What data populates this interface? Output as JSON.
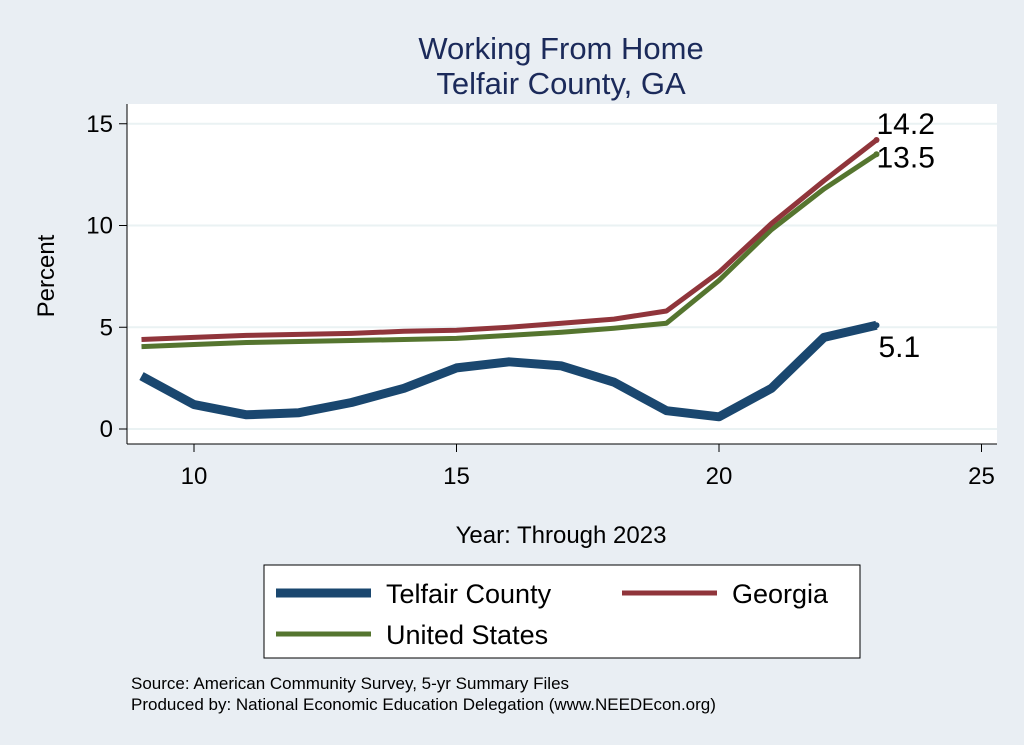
{
  "chart_data": {
    "type": "line",
    "title": "Working From Home",
    "subtitle": "Telfair County, GA",
    "xlabel": "Year: Through 2023",
    "ylabel": "Percent",
    "xlim": [
      9,
      25
    ],
    "ylim": [
      0,
      15
    ],
    "x_ticks": [
      "10",
      "15",
      "20",
      "25"
    ],
    "y_ticks": [
      "0",
      "5",
      "10",
      "15"
    ],
    "grid": true,
    "legend_position": "bottom",
    "x": [
      9,
      10,
      11,
      12,
      13,
      14,
      15,
      16,
      17,
      18,
      19,
      20,
      21,
      22,
      23
    ],
    "series": [
      {
        "name": "Telfair County",
        "color": "#1a476f",
        "values": [
          2.6,
          1.2,
          0.7,
          0.8,
          1.3,
          2.0,
          3.0,
          3.3,
          3.1,
          2.3,
          0.9,
          0.6,
          2.0,
          4.5,
          5.1
        ],
        "end_label": "5.1"
      },
      {
        "name": "Georgia",
        "color": "#90353b",
        "values": [
          4.4,
          4.5,
          4.6,
          4.65,
          4.7,
          4.8,
          4.85,
          5.0,
          5.2,
          5.4,
          5.8,
          7.7,
          10.1,
          12.2,
          14.2
        ],
        "end_label": "14.2"
      },
      {
        "name": "United States",
        "color": "#55752f",
        "values": [
          4.05,
          4.15,
          4.25,
          4.3,
          4.35,
          4.4,
          4.45,
          4.6,
          4.75,
          4.95,
          5.2,
          7.3,
          9.8,
          11.8,
          13.5
        ],
        "end_label": "13.5"
      }
    ],
    "source_lines": [
      "Source: American Community Survey, 5-yr Summary Files",
      "Produced by: National Economic Education Delegation (www.NEEDEcon.org)"
    ]
  }
}
